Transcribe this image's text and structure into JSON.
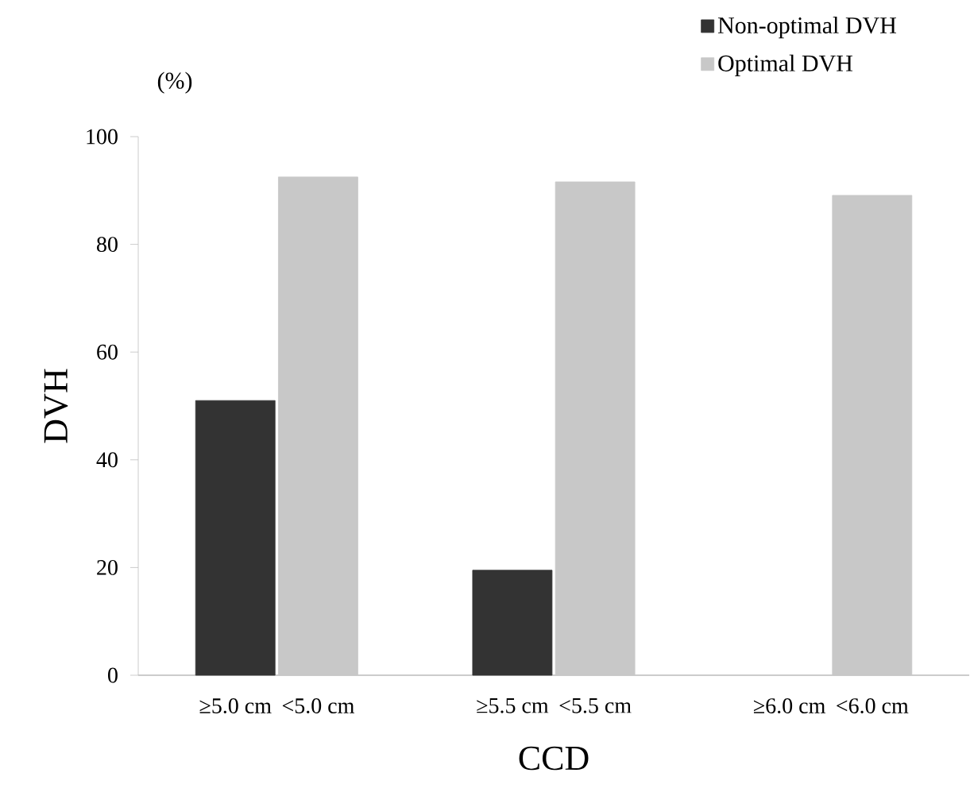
{
  "chart_data": {
    "type": "bar",
    "xlabel": "CCD",
    "ylabel": "DVH",
    "annotations": [
      "(%)"
    ],
    "categories": [
      "≥5.0 cm",
      "<5.0 cm",
      "≥5.5 cm",
      "<5.5 cm",
      "≥6.0 cm",
      "<6.0 cm"
    ],
    "series": [
      {
        "name": "Non-optimal DVH",
        "color": "#333333",
        "values": [
          51.0,
          null,
          19.5,
          null,
          null,
          null
        ]
      },
      {
        "name": "Optimal DVH",
        "color": "#c8c8c8",
        "values": [
          null,
          92.5,
          null,
          91.6,
          null,
          89.1
        ]
      }
    ],
    "ylim": [
      0,
      100
    ],
    "yticks": [
      0,
      20,
      40,
      60,
      80,
      100
    ],
    "legend": "top right"
  }
}
